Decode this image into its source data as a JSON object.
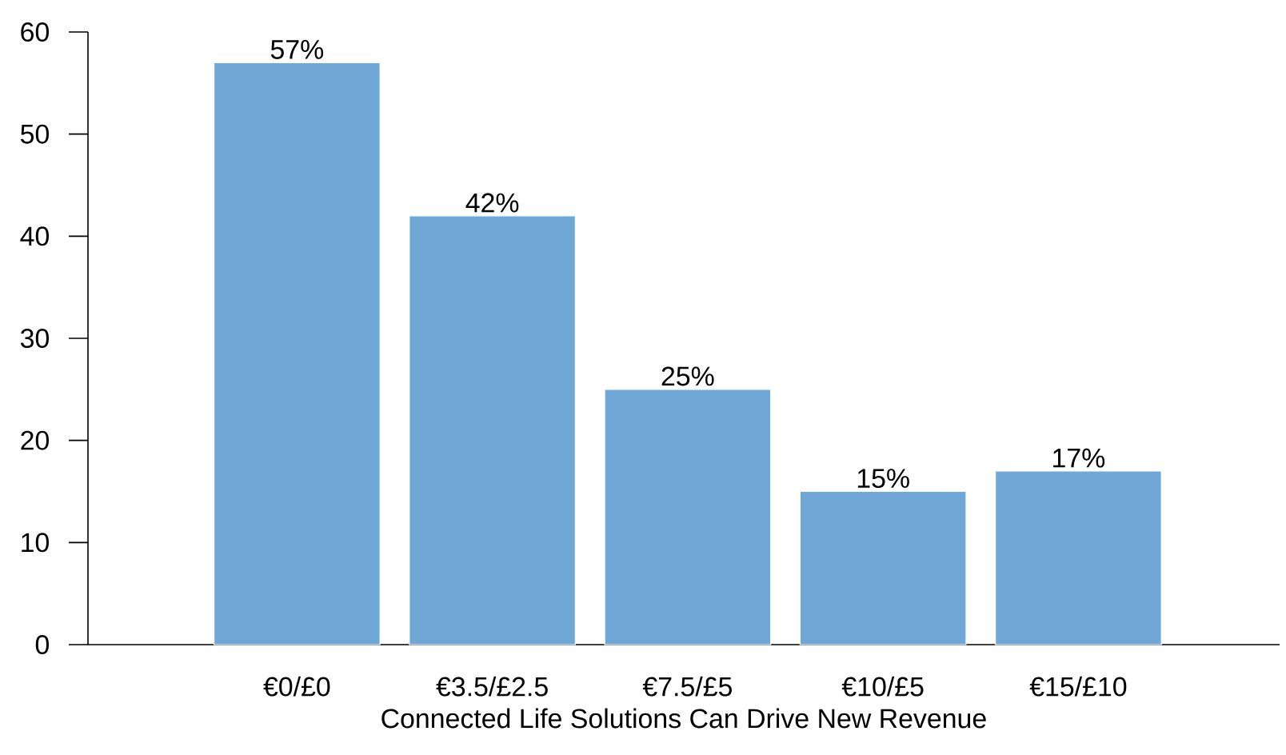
{
  "chart_data": {
    "type": "bar",
    "xlabel": "Connected Life Solutions Can Drive New Revenue",
    "categories": [
      "€0/£0",
      "€3.5/£2.5",
      "€7.5/£5",
      "€10/£5",
      "€15/£10"
    ],
    "values": [
      57,
      42,
      25,
      15,
      17
    ],
    "value_labels": [
      "57%",
      "42%",
      "25%",
      "15%",
      "17%"
    ],
    "color": "#6fa8d6",
    "ylim": [
      0,
      60
    ],
    "yticks": [
      0,
      10,
      20,
      30,
      40,
      50,
      60
    ],
    "grid": false
  }
}
